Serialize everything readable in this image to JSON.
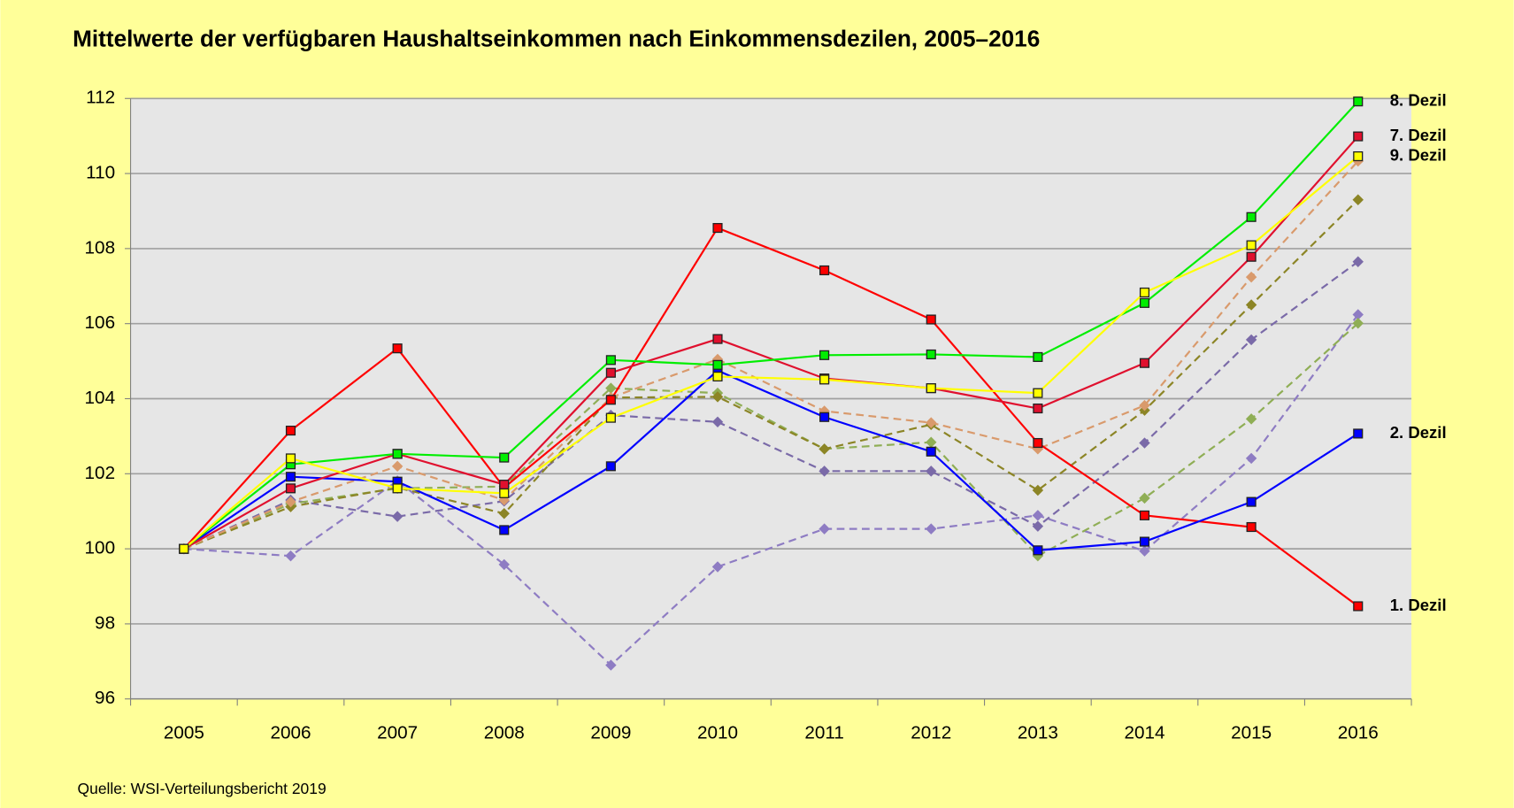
{
  "chart_data": {
    "type": "line",
    "title": "Mittelwerte der verfügbaren Haushaltseinkommen nach Einkommensdezilen, 2005–2016",
    "source": "Quelle: WSI-Verteilungsbericht 2019",
    "categories": [
      "2005",
      "2006",
      "2007",
      "2008",
      "2009",
      "2010",
      "2011",
      "2012",
      "2013",
      "2014",
      "2015",
      "2016"
    ],
    "ylim": [
      96,
      112
    ],
    "yticks": [
      96,
      98,
      100,
      102,
      104,
      106,
      108,
      110,
      112
    ],
    "grid": true,
    "series": [
      {
        "color": "#8e7cc3",
        "dashed": true,
        "marker": "diamond",
        "values": [
          100,
          99.81,
          101.81,
          99.58,
          96.9,
          99.52,
          100.53,
          100.53,
          100.89,
          99.94,
          102.41,
          106.24
        ]
      },
      {
        "color": "#7a6aa8",
        "dashed": true,
        "marker": "diamond",
        "values": [
          100,
          101.3,
          100.86,
          101.27,
          103.56,
          103.38,
          102.07,
          102.07,
          100.6,
          102.82,
          105.57,
          107.65
        ]
      },
      {
        "color": "#8fae55",
        "dashed": true,
        "marker": "diamond",
        "values": [
          100,
          101.2,
          101.61,
          101.66,
          104.28,
          104.15,
          102.66,
          102.84,
          99.81,
          101.35,
          103.46,
          106.01
        ]
      },
      {
        "color": "#8c8526",
        "dashed": true,
        "marker": "diamond",
        "values": [
          100,
          101.12,
          101.63,
          100.94,
          104.03,
          104.05,
          102.66,
          103.31,
          101.56,
          103.69,
          106.5,
          109.3
        ]
      },
      {
        "color": "#d99a6c",
        "dashed": true,
        "marker": "diamond",
        "values": [
          100,
          101.25,
          102.2,
          101.3,
          104.03,
          105.05,
          103.67,
          103.36,
          102.66,
          103.82,
          107.24,
          110.33
        ]
      },
      {
        "name": "1. Dezil",
        "color": "#ff0000",
        "marker": "square",
        "values": [
          100,
          103.15,
          105.34,
          101.63,
          103.97,
          108.55,
          107.42,
          106.11,
          102.82,
          100.89,
          100.58,
          98.47
        ]
      },
      {
        "name": "2. Dezil",
        "color": "#0000ff",
        "marker": "square",
        "values": [
          100,
          101.92,
          101.79,
          100.5,
          102.2,
          104.75,
          103.51,
          102.59,
          99.96,
          100.19,
          101.25,
          103.07
        ]
      },
      {
        "name": "7. Dezil",
        "color": "#e0102e",
        "marker": "square",
        "values": [
          100,
          101.61,
          102.53,
          101.71,
          104.69,
          105.59,
          104.54,
          104.28,
          103.74,
          104.95,
          107.78,
          110.99
        ]
      },
      {
        "name": "8. Dezil",
        "color": "#00ee00",
        "marker": "square",
        "values": [
          100,
          102.25,
          102.53,
          102.43,
          105.03,
          104.9,
          105.16,
          105.18,
          105.11,
          106.55,
          108.84,
          111.92
        ]
      },
      {
        "name": "9. Dezil",
        "color": "#ffff00",
        "marker": "square",
        "values": [
          100,
          102.41,
          101.61,
          101.48,
          103.49,
          104.59,
          104.51,
          104.28,
          104.15,
          106.83,
          108.09,
          110.46
        ]
      }
    ]
  }
}
